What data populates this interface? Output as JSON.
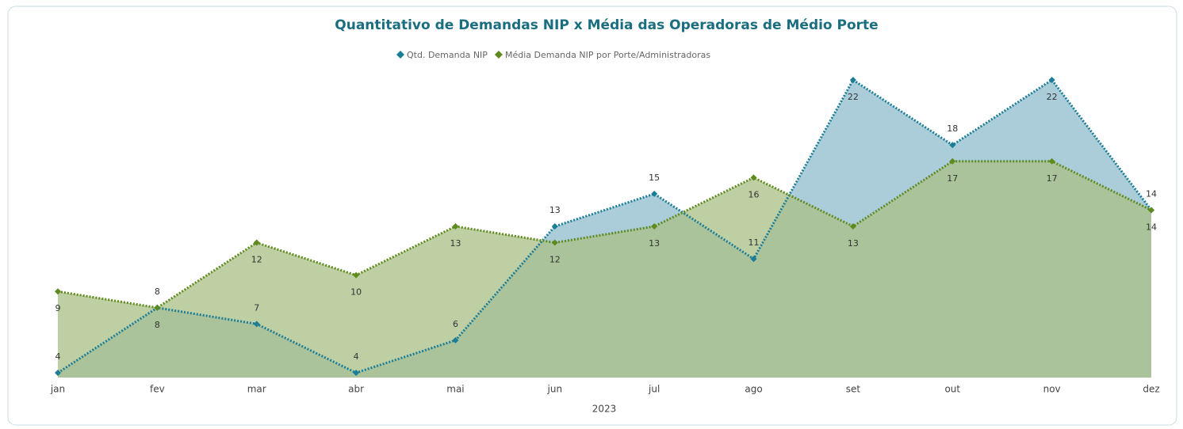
{
  "chart_data": {
    "type": "area",
    "title": "Quantitativo de Demandas NIP x Média das Operadoras de Médio Porte",
    "x_label": "2023",
    "categories": [
      "jan",
      "fev",
      "mar",
      "abr",
      "mai",
      "jun",
      "jul",
      "ago",
      "set",
      "out",
      "nov",
      "dez"
    ],
    "series": [
      {
        "name": "Qtd. Demanda NIP",
        "color": "#1b7d96",
        "fill": "#8fbccd",
        "values": [
          4,
          8,
          7,
          4,
          6,
          13,
          15,
          11,
          22,
          18,
          22,
          14
        ]
      },
      {
        "name": "Média Demanda NIP por Porte/Administradoras",
        "color": "#5f8a1e",
        "fill": "#a9bf85",
        "values": [
          9,
          8,
          12,
          10,
          13,
          12,
          13,
          16,
          13,
          17,
          17,
          14
        ]
      }
    ],
    "legend": "top"
  }
}
